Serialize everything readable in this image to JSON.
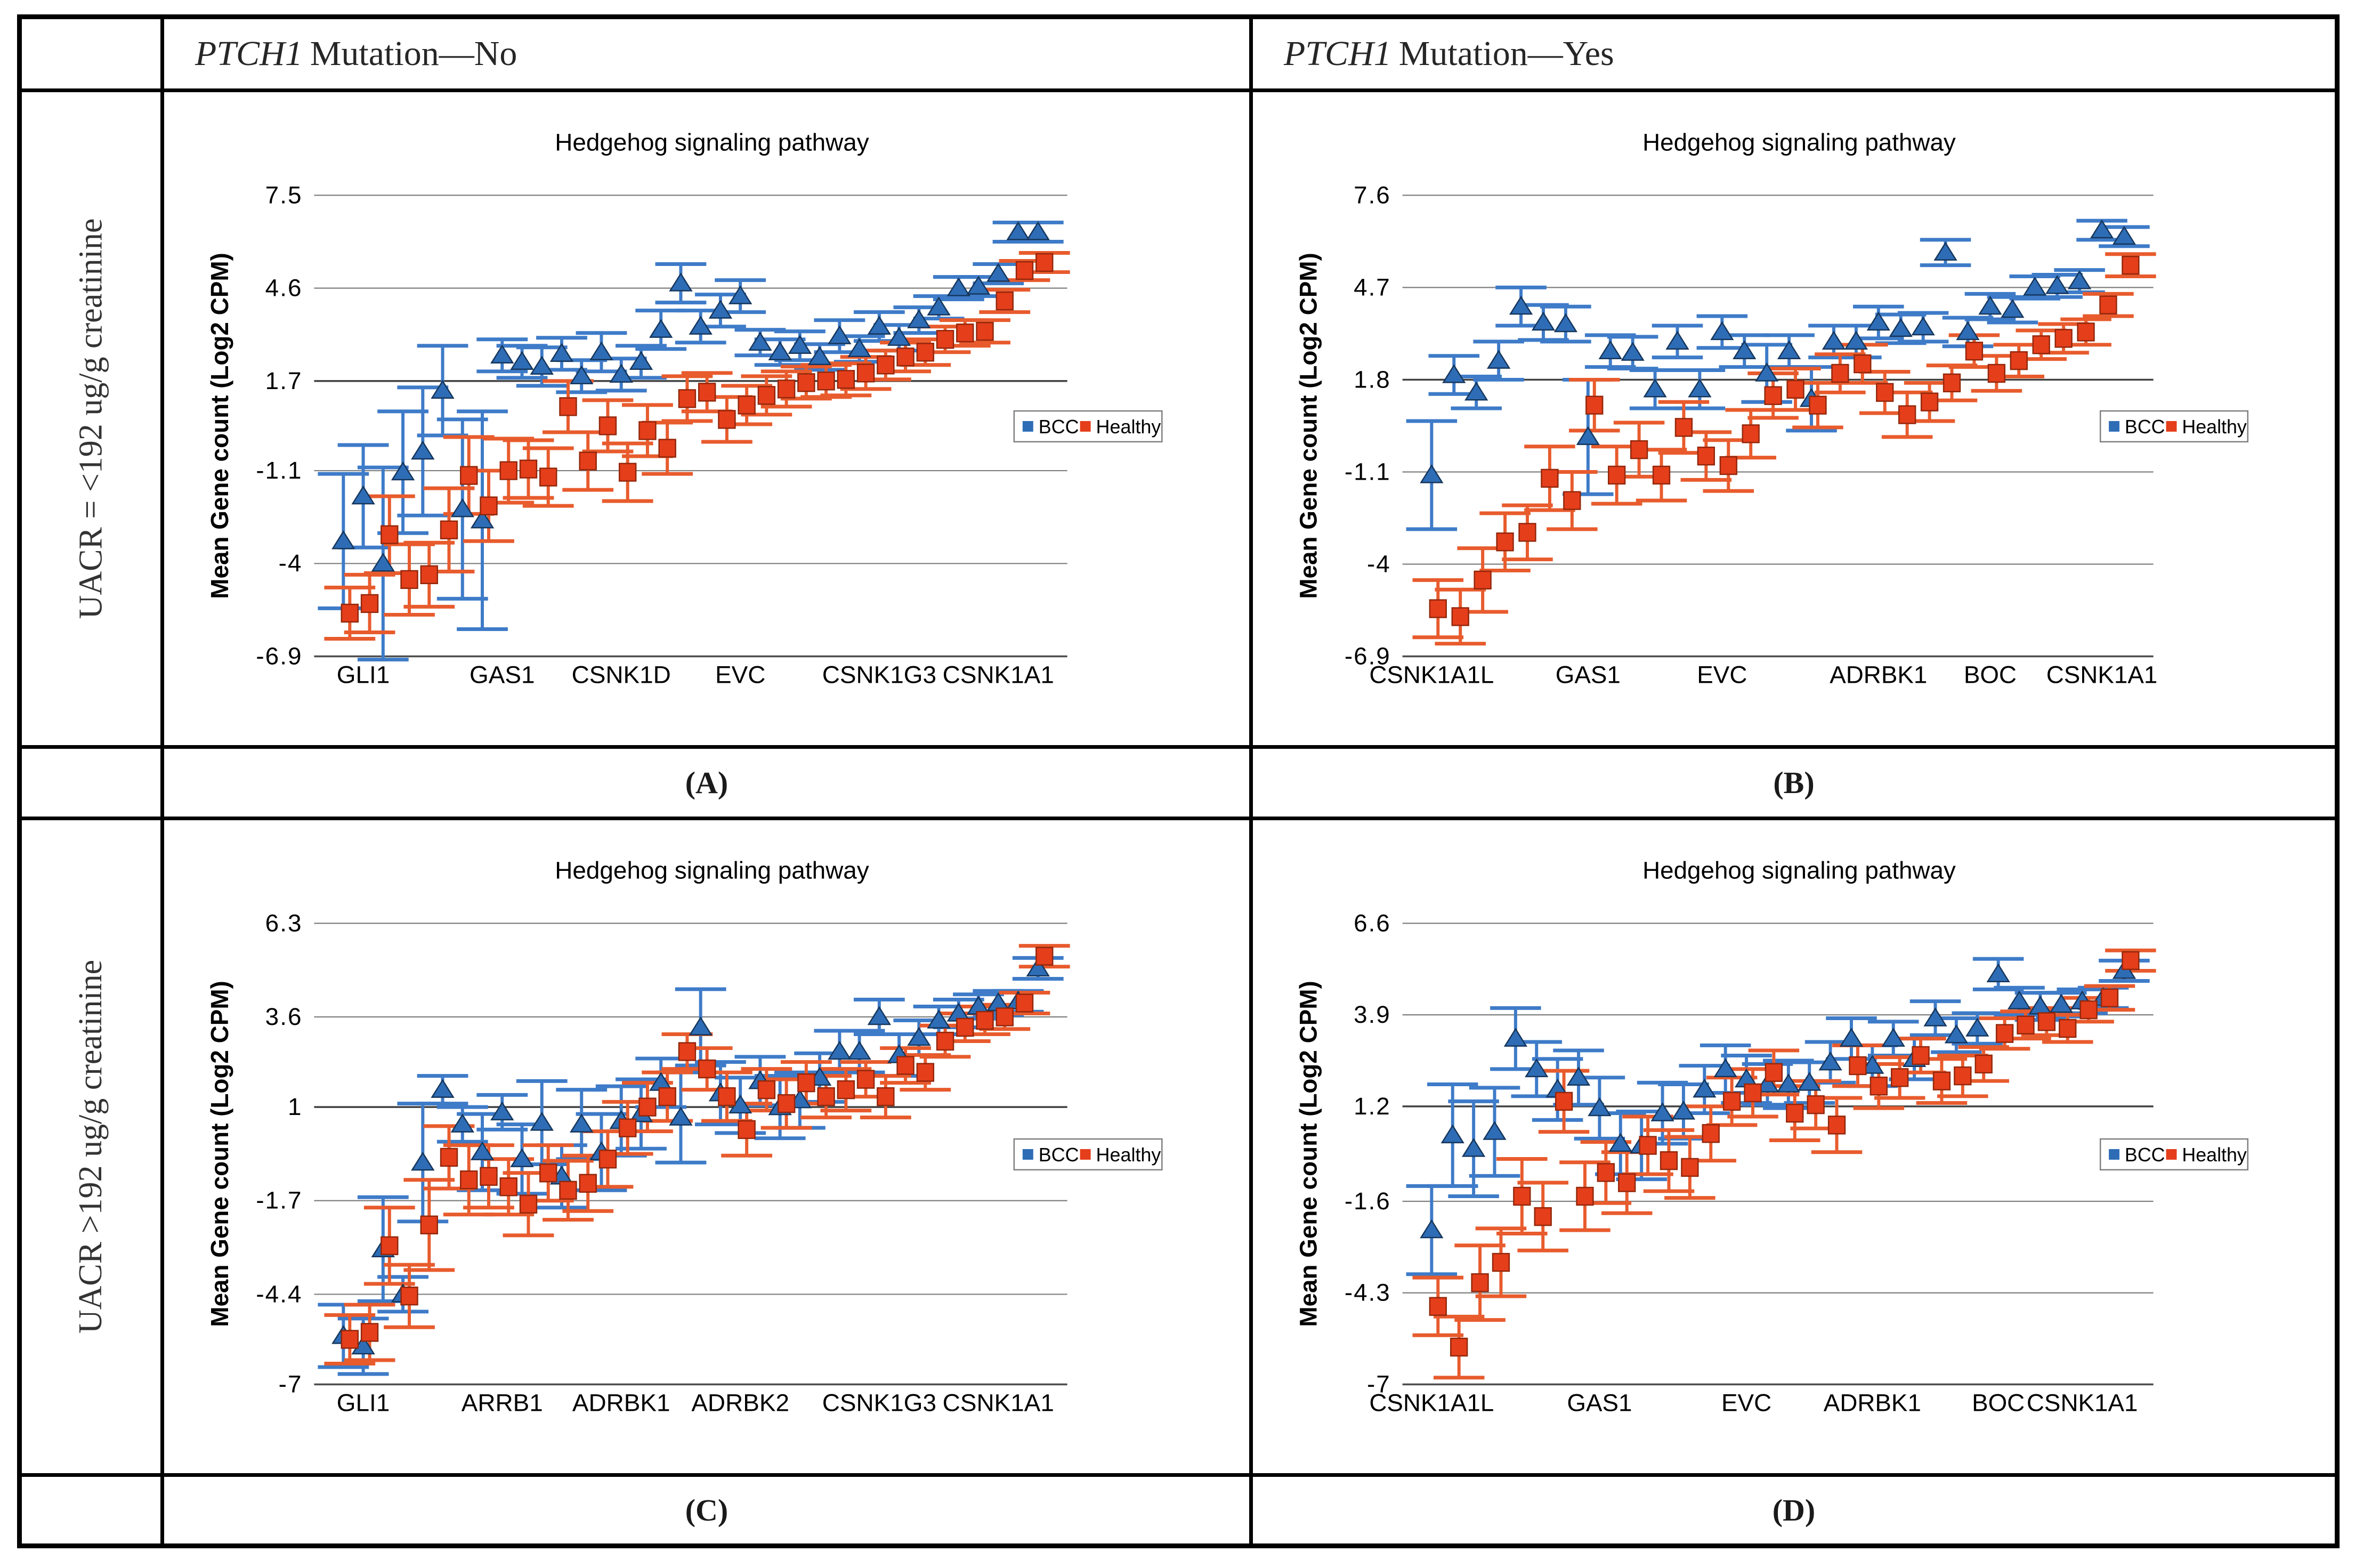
{
  "table": {
    "col_headers": [
      {
        "italic": "PTCH1",
        "rest": "Mutation—No"
      },
      {
        "italic": "PTCH1",
        "rest": "Mutation—Yes"
      }
    ],
    "row_headers": [
      "UACR = <192 ug/g creatinine",
      "UACR >192 ug/g creatinine"
    ],
    "captions": [
      "(A)",
      "(B)",
      "(C)",
      "(D)"
    ]
  },
  "legend": {
    "bcc": "BCC",
    "healthy": "Healthy"
  },
  "colors": {
    "bcc_fill": "#2E6DB6",
    "bcc_stroke": "#16365C",
    "bcc_error": "#3E7BC8",
    "healthy_fill": "#E53E1B",
    "healthy_stroke": "#93270B",
    "healthy_error": "#E85B2D",
    "grid": "#7F7F7F",
    "grid_dark": "#404040",
    "axis": "#4D4D4D",
    "legend_border": "#7F7F7F",
    "table_border": "#000000",
    "text": "#000000"
  },
  "chart_data": [
    {
      "id": "A",
      "type": "scatter",
      "title": "Hedgehog signaling pathway",
      "ylabel": "Mean Gene count (Log2 CPM)",
      "ytick_labels": [
        "7.5",
        "4.6",
        "1.7",
        "-1.1",
        "-4",
        "-6.9"
      ],
      "yticks": [
        7.5,
        4.6,
        1.7,
        -1.1,
        -4,
        -6.9
      ],
      "ylim": [
        -6.9,
        7.5
      ],
      "xtick_labels": [
        "GLI1",
        "GAS1",
        "CSNK1D",
        "EVC",
        "CSNK1G3",
        "CSNK1A1"
      ],
      "xtick_indices": [
        1,
        8,
        14,
        20,
        27,
        33
      ],
      "legend": [
        "BCC",
        "Healthy"
      ],
      "series": {
        "bcc": {
          "values": [
            -3.3,
            -1.9,
            -4.0,
            -1.15,
            -0.5,
            1.4,
            -2.3,
            -2.65,
            2.5,
            2.3,
            2.15,
            2.55,
            1.85,
            2.6,
            1.9,
            2.3,
            3.3,
            4.75,
            3.4,
            3.9,
            4.35,
            2.9,
            2.6,
            2.8,
            2.45,
            3.1,
            2.7,
            3.4,
            3.05,
            3.6,
            4.0,
            4.6,
            4.65,
            5.05,
            6.35,
            6.35
          ],
          "err": [
            2.1,
            1.6,
            3.0,
            1.9,
            2.0,
            1.4,
            2.8,
            3.4,
            0.5,
            0.5,
            0.6,
            0.5,
            0.5,
            0.6,
            0.5,
            0.5,
            0.6,
            0.6,
            0.5,
            0.5,
            0.5,
            0.4,
            0.4,
            0.45,
            0.4,
            0.5,
            0.4,
            0.45,
            0.4,
            0.4,
            0.35,
            0.35,
            0.3,
            0.3,
            0.3,
            0.3
          ]
        },
        "healthy": {
          "values": [
            -5.55,
            -5.25,
            -3.1,
            -4.5,
            -4.35,
            -2.95,
            -1.25,
            -2.2,
            -1.1,
            -1.05,
            -1.3,
            0.9,
            -0.8,
            0.3,
            -1.15,
            0.15,
            -0.4,
            1.15,
            1.35,
            0.5,
            0.95,
            1.25,
            1.45,
            1.65,
            1.7,
            1.75,
            1.95,
            2.2,
            2.45,
            2.6,
            3.0,
            3.2,
            3.25,
            4.2,
            5.15,
            5.4
          ],
          "err": [
            0.8,
            0.9,
            1.2,
            1.1,
            1.0,
            1.3,
            1.2,
            1.1,
            1.0,
            0.9,
            0.9,
            0.8,
            0.9,
            0.8,
            0.9,
            0.8,
            0.8,
            0.7,
            0.6,
            0.7,
            0.6,
            0.6,
            0.55,
            0.5,
            0.5,
            0.5,
            0.5,
            0.45,
            0.45,
            0.4,
            0.4,
            0.4,
            0.35,
            0.35,
            0.3,
            0.3
          ]
        }
      }
    },
    {
      "id": "B",
      "type": "scatter",
      "title": "Hedgehog signaling pathway",
      "ylabel": "Mean Gene count (Log2 CPM)",
      "ytick_labels": [
        "7.6",
        "4.7",
        "1.8",
        "-1.1",
        "-4",
        "-6.9"
      ],
      "yticks": [
        7.6,
        4.7,
        1.8,
        -1.1,
        -4,
        -6.9
      ],
      "ylim": [
        -6.9,
        7.6
      ],
      "xtick_labels": [
        "CSNK1A1L",
        "GAS1",
        "EVC",
        "ADRBK1",
        "BOC",
        "CSNK1A1"
      ],
      "xtick_indices": [
        0,
        7,
        13,
        20,
        25,
        30
      ],
      "legend": [
        "BCC",
        "Healthy"
      ],
      "series": {
        "bcc": {
          "values": [
            -1.2,
            1.95,
            1.4,
            2.4,
            4.1,
            3.6,
            3.55,
            0.0,
            2.7,
            2.65,
            1.5,
            3.0,
            1.5,
            3.3,
            2.7,
            2.0,
            2.7,
            1.2,
            3.0,
            3.0,
            3.6,
            3.4,
            3.45,
            5.8,
            3.3,
            4.1,
            4.0,
            4.7,
            4.75,
            4.9,
            6.5,
            6.3
          ],
          "err": [
            1.7,
            0.6,
            0.5,
            0.6,
            0.6,
            0.55,
            0.55,
            1.8,
            0.5,
            0.5,
            0.6,
            0.5,
            0.6,
            0.5,
            0.5,
            0.9,
            0.5,
            1.0,
            0.5,
            0.5,
            0.5,
            0.45,
            0.45,
            0.4,
            0.45,
            0.4,
            0.4,
            0.35,
            0.35,
            0.35,
            0.3,
            0.3
          ]
        },
        "healthy": {
          "values": [
            -5.4,
            -5.65,
            -4.5,
            -3.3,
            -3.0,
            -1.3,
            -2.0,
            1.0,
            -1.2,
            -0.4,
            -1.2,
            0.3,
            -0.6,
            -0.9,
            0.1,
            1.3,
            1.5,
            1.0,
            2.0,
            2.3,
            1.4,
            0.7,
            1.1,
            1.7,
            2.7,
            2.0,
            2.4,
            2.9,
            3.1,
            3.3,
            4.15,
            5.4
          ],
          "err": [
            0.9,
            0.85,
            1.0,
            0.9,
            0.85,
            1.0,
            0.9,
            0.8,
            0.9,
            0.85,
            0.8,
            0.8,
            0.75,
            0.8,
            0.75,
            0.7,
            0.65,
            0.7,
            0.6,
            0.6,
            0.65,
            0.7,
            0.6,
            0.55,
            0.5,
            0.55,
            0.5,
            0.45,
            0.45,
            0.4,
            0.35,
            0.35
          ]
        }
      }
    },
    {
      "id": "C",
      "type": "scatter",
      "title": "Hedgehog signaling pathway",
      "ylabel": "Mean Gene count (Log2 CPM)",
      "ytick_labels": [
        "6.3",
        "3.6",
        "1",
        "-1.7",
        "-4.4",
        "-7"
      ],
      "yticks": [
        6.3,
        3.6,
        1,
        -1.7,
        -4.4,
        -7
      ],
      "ylim": [
        -7,
        6.3
      ],
      "xtick_labels": [
        "GLI1",
        "ARRB1",
        "ADRBK1",
        "ADRBK2",
        "CSNK1G3",
        "CSNK1A1"
      ],
      "xtick_indices": [
        1,
        8,
        14,
        20,
        27,
        33
      ],
      "legend": [
        "BCC",
        "Healthy"
      ],
      "series": {
        "bcc": {
          "values": [
            -5.6,
            -5.9,
            -3.1,
            -4.4,
            -0.6,
            1.5,
            0.5,
            -0.3,
            0.85,
            -0.5,
            0.55,
            -1.0,
            0.5,
            -0.3,
            0.6,
            0.8,
            1.7,
            0.7,
            3.3,
            1.4,
            1.05,
            1.75,
            1.0,
            1.2,
            1.85,
            2.6,
            2.6,
            3.6,
            2.5,
            3.0,
            3.5,
            3.7,
            3.9,
            4.0,
            4.05,
            5.0
          ],
          "err": [
            0.9,
            0.8,
            1.5,
            0.5,
            1.7,
            0.4,
            0.5,
            1.1,
            0.5,
            1.0,
            1.2,
            0.9,
            1.0,
            1.1,
            1.0,
            1.0,
            0.7,
            1.3,
            1.1,
            0.9,
            0.8,
            0.7,
            0.9,
            0.8,
            0.7,
            0.6,
            0.6,
            0.5,
            0.6,
            0.5,
            0.4,
            0.4,
            0.35,
            0.35,
            0.3,
            0.3
          ]
        },
        "healthy": {
          "values": [
            -5.7,
            -5.5,
            -3.0,
            -4.45,
            -2.4,
            -0.45,
            -1.1,
            -1.0,
            -1.3,
            -1.8,
            -0.9,
            -1.4,
            -1.2,
            -0.5,
            0.4,
            1.0,
            1.3,
            2.6,
            2.1,
            1.3,
            0.35,
            1.5,
            1.1,
            1.7,
            1.3,
            1.5,
            1.8,
            1.3,
            2.2,
            2.0,
            2.9,
            3.3,
            3.5,
            3.6,
            4.0,
            5.35
          ],
          "err": [
            0.7,
            0.8,
            1.1,
            0.9,
            1.3,
            0.9,
            1.0,
            0.9,
            0.8,
            0.9,
            0.8,
            0.85,
            0.8,
            0.8,
            0.75,
            0.7,
            0.7,
            0.5,
            0.6,
            0.7,
            0.75,
            0.6,
            0.7,
            0.6,
            0.6,
            0.6,
            0.5,
            0.6,
            0.5,
            0.5,
            0.45,
            0.4,
            0.4,
            0.35,
            0.3,
            0.3
          ]
        }
      }
    },
    {
      "id": "D",
      "type": "scatter",
      "title": "Hedgehog signaling pathway",
      "ylabel": "Mean Gene count (Log2 CPM)",
      "ytick_labels": [
        "6.6",
        "3.9",
        "1.2",
        "-1.6",
        "-4.3",
        "-7"
      ],
      "yticks": [
        6.6,
        3.9,
        1.2,
        -1.6,
        -4.3,
        -7
      ],
      "ylim": [
        -7,
        6.6
      ],
      "xtick_labels": [
        "CSNK1A1L",
        "GAS1",
        "EVC",
        "ADRBK1",
        "BOC",
        "CSNK1A1"
      ],
      "xtick_indices": [
        0,
        8,
        15,
        21,
        27,
        31
      ],
      "legend": [
        "BCC",
        "Healthy"
      ],
      "series": {
        "bcc": {
          "values": [
            -2.45,
            0.35,
            -0.05,
            0.45,
            3.2,
            2.3,
            1.7,
            2.05,
            1.15,
            0.1,
            0.05,
            1.0,
            1.05,
            1.7,
            2.3,
            2.0,
            1.85,
            1.85,
            1.9,
            2.5,
            3.2,
            2.4,
            3.2,
            2.6,
            3.8,
            3.3,
            3.5,
            5.1,
            4.3,
            4.15,
            4.2,
            4.3,
            4.4,
            5.2
          ],
          "err": [
            1.3,
            1.5,
            1.4,
            1.3,
            0.9,
            0.8,
            0.9,
            0.8,
            0.9,
            0.9,
            1.0,
            0.9,
            0.8,
            0.7,
            0.7,
            0.7,
            0.6,
            0.7,
            0.6,
            0.6,
            0.6,
            0.6,
            0.5,
            0.6,
            0.5,
            0.5,
            0.45,
            0.45,
            0.4,
            0.4,
            0.35,
            0.35,
            0.3,
            0.3
          ]
        },
        "healthy": {
          "values": [
            -4.7,
            -5.9,
            -4.0,
            -3.4,
            -1.45,
            -2.05,
            1.35,
            -1.45,
            -0.75,
            -1.05,
            0.05,
            -0.4,
            -0.6,
            0.4,
            1.35,
            1.6,
            2.2,
            1.0,
            1.25,
            0.65,
            2.4,
            1.8,
            2.05,
            2.7,
            1.95,
            2.1,
            2.45,
            3.35,
            3.6,
            3.7,
            3.5,
            4.05,
            4.4,
            5.5
          ],
          "err": [
            0.85,
            0.9,
            1.1,
            1.0,
            1.1,
            1.0,
            0.9,
            1.0,
            0.9,
            0.9,
            0.85,
            0.9,
            0.9,
            0.8,
            0.7,
            0.7,
            0.65,
            0.8,
            0.7,
            0.8,
            0.6,
            0.65,
            0.6,
            0.5,
            0.65,
            0.6,
            0.5,
            0.45,
            0.4,
            0.4,
            0.4,
            0.35,
            0.35,
            0.3
          ]
        }
      }
    }
  ]
}
